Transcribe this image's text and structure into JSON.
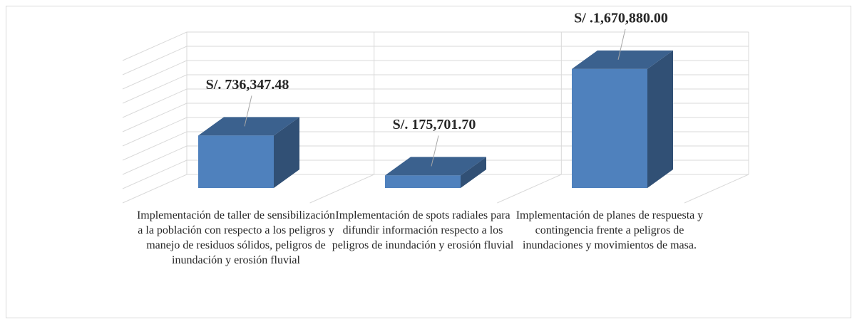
{
  "chart_data": {
    "type": "bar3d",
    "categories": [
      "Implementación de taller de sensibilización a la población con respecto a los peligros y manejo de residuos sólidos, peligros de inundación y erosión fluvial",
      "Implementación de spots radiales para difundir información respecto a los peligros de inundación y erosión fluvial",
      "Implementación de planes de respuesta y contingencia frente a peligros de inundaciones y movimientos de masa."
    ],
    "values": [
      736347.48,
      175701.7,
      1670880.0
    ],
    "value_labels": [
      "S/. 736,347.48",
      "S/. 175,701.70",
      "S/ .1,670,880.00"
    ],
    "color": "#4f81bd",
    "ylim": [
      0,
      2000000
    ],
    "yticks": [
      0,
      200000,
      400000,
      600000,
      800000,
      1000000,
      1200000,
      1400000,
      1600000,
      1800000,
      2000000
    ],
    "grid": true
  }
}
